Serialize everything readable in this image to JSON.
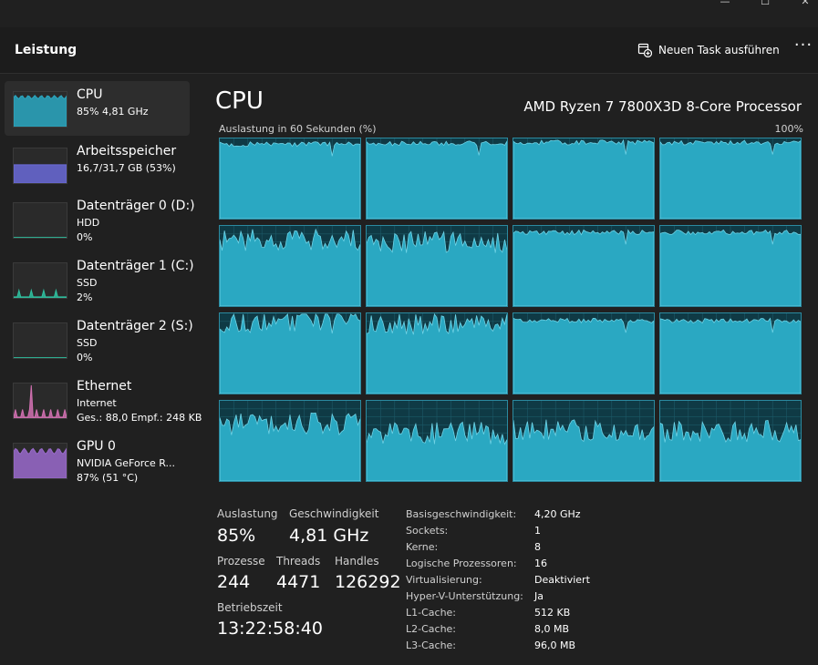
{
  "window": {
    "minimize_glyph": "—",
    "maximize_glyph": "☐",
    "close_glyph": "✕"
  },
  "header": {
    "title": "Leistung",
    "run_task_label": "Neuen Task ausführen",
    "run_task_icon": "new-task-icon",
    "more_label": "···"
  },
  "sidebar": {
    "items": [
      {
        "name": "cpu",
        "title": "CPU",
        "lines": [
          "85% 4,81 GHz"
        ],
        "color": "#2aa8c2"
      },
      {
        "name": "memory",
        "title": "Arbeitsspeicher",
        "lines": [
          "16,7/31,7 GB (53%)"
        ],
        "color": "#6a6ad8"
      },
      {
        "name": "disk-0",
        "title": "Datenträger 0 (D:)",
        "lines": [
          "HDD",
          "0%"
        ],
        "color": "#2fbf9f"
      },
      {
        "name": "disk-1",
        "title": "Datenträger 1 (C:)",
        "lines": [
          "SSD",
          "2%"
        ],
        "color": "#2fbf9f"
      },
      {
        "name": "disk-2",
        "title": "Datenträger 2 (S:)",
        "lines": [
          "SSD",
          "0%"
        ],
        "color": "#2fbf9f"
      },
      {
        "name": "ethernet",
        "title": "Ethernet",
        "lines": [
          "Internet",
          "Ges.: 88,0 Empf.: 248 KB"
        ],
        "color": "#d070b0"
      },
      {
        "name": "gpu",
        "title": "GPU 0",
        "lines": [
          "NVIDIA GeForce R...",
          "87% (51 °C)"
        ],
        "color": "#9a6acc"
      }
    ]
  },
  "main": {
    "title": "CPU",
    "model": "AMD Ryzen 7 7800X3D 8-Core Processor",
    "graph_label": "Auslastung in 60 Sekunden (%)",
    "graph_max": "100%",
    "graph_color": "#2aa8c2",
    "core_levels": [
      0.93,
      0.94,
      0.95,
      0.95,
      0.82,
      0.8,
      0.92,
      0.92,
      0.9,
      0.87,
      0.91,
      0.91,
      0.71,
      0.6,
      0.63,
      0.62
    ]
  },
  "stats": {
    "utilization_label": "Auslastung",
    "utilization_value": "85%",
    "speed_label": "Geschwindigkeit",
    "speed_value": "4,81 GHz",
    "processes_label": "Prozesse",
    "processes_value": "244",
    "threads_label": "Threads",
    "threads_value": "4471",
    "handles_label": "Handles",
    "handles_value": "126292",
    "uptime_label": "Betriebszeit",
    "uptime_value": "13:22:58:40"
  },
  "info": [
    {
      "key": "Basisgeschwindigkeit:",
      "value": "4,20 GHz"
    },
    {
      "key": "Sockets:",
      "value": "1"
    },
    {
      "key": "Kerne:",
      "value": "8"
    },
    {
      "key": "Logische Prozessoren:",
      "value": "16"
    },
    {
      "key": "Virtualisierung:",
      "value": "Deaktiviert"
    },
    {
      "key": "Hyper-V-Unterstützung:",
      "value": "Ja"
    },
    {
      "key": "L1-Cache:",
      "value": "512 KB"
    },
    {
      "key": "L2-Cache:",
      "value": "8,0 MB"
    },
    {
      "key": "L3-Cache:",
      "value": "96,0 MB"
    }
  ]
}
